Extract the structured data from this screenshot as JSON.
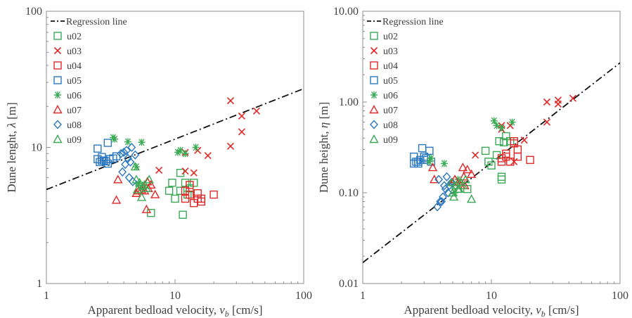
{
  "chart_data": [
    {
      "id": "left",
      "type": "scatter",
      "xscale": "log",
      "yscale": "log",
      "xlim": [
        1,
        100
      ],
      "ylim": [
        1,
        100
      ],
      "xticks": [
        "1",
        "10",
        "100"
      ],
      "yticks": [
        "1",
        "10",
        "100"
      ],
      "xlabel": "Apparent bedload velocity, ",
      "xlabel_symbol": "v",
      "xlabel_sub": "b",
      "xlabel_unit": " [cm/s]",
      "ylabel": "Dune lenght, ",
      "ylabel_symbol": "λ",
      "ylabel_unit": " [m]",
      "legend_position": "top-left",
      "grid": false,
      "regression": {
        "label": "Regression line",
        "x": [
          1,
          100
        ],
        "y": [
          4.9,
          27
        ]
      },
      "series": [
        {
          "name": "u02",
          "marker": "square",
          "color": "#3aaa55",
          "x": [
            6.5,
            9.5,
            10.0,
            9.0,
            11.0,
            11.5,
            12.0,
            13.0,
            14.0,
            12.5,
            11.0
          ],
          "y": [
            3.3,
            5.5,
            4.2,
            4.8,
            4.8,
            3.2,
            5.5,
            5.0,
            5.5,
            4.5,
            6.5
          ]
        },
        {
          "name": "u03",
          "marker": "x",
          "color": "#e02828",
          "x": [
            27,
            33,
            33,
            43,
            27,
            18,
            15,
            12,
            14,
            7.5,
            12
          ],
          "y": [
            22,
            17,
            13,
            18.5,
            10.2,
            8.7,
            9.5,
            9.2,
            6.5,
            6.8,
            6.7
          ]
        },
        {
          "name": "u04",
          "marker": "square",
          "color": "#e02828",
          "x": [
            12,
            13,
            14,
            15,
            15,
            16,
            12,
            20,
            16,
            13
          ],
          "y": [
            4.2,
            4.5,
            3.9,
            4.2,
            4.6,
            4.2,
            4.8,
            4.5,
            4.0,
            5.3
          ]
        },
        {
          "name": "u05",
          "marker": "square",
          "color": "#2a78c0",
          "x": [
            2.5,
            2.7,
            2.8,
            2.6,
            3.0,
            3.1,
            3.3,
            3.0,
            2.7,
            2.5,
            3.5,
            2.9
          ],
          "y": [
            9.8,
            8.5,
            8.0,
            7.8,
            7.6,
            8.2,
            8.3,
            10.8,
            8.0,
            8.2,
            8.6,
            7.9
          ]
        },
        {
          "name": "u06",
          "marker": "asterisk",
          "color": "#3aaa55",
          "x": [
            3.3,
            3.4,
            4.3,
            5.5,
            10.5,
            11.0,
            12.0,
            14.5,
            5.0,
            5.2,
            5.6
          ],
          "y": [
            11.8,
            11.5,
            11.0,
            10.9,
            9.2,
            9.5,
            9.0,
            10.0,
            7.2,
            5.4,
            5.0
          ]
        },
        {
          "name": "u07",
          "marker": "triangle",
          "color": "#e02828",
          "x": [
            3.5,
            3.6,
            5.0,
            6.0,
            6.2,
            5.5,
            7.0,
            6.5,
            5.8,
            6.1,
            5.2
          ],
          "y": [
            4.1,
            5.8,
            4.6,
            3.5,
            5.0,
            4.9,
            4.5,
            5.3,
            4.8,
            5.6,
            4.8
          ]
        },
        {
          "name": "u08",
          "marker": "diamond",
          "color": "#2a78c0",
          "x": [
            3.8,
            4.0,
            4.2,
            4.3,
            4.5,
            4.4,
            4.7,
            4.9,
            3.9,
            4.6,
            4.1
          ],
          "y": [
            9.0,
            9.2,
            9.5,
            8.3,
            7.8,
            6.0,
            5.6,
            8.8,
            6.6,
            10.0,
            7.5
          ]
        },
        {
          "name": "u09",
          "marker": "triangle",
          "color": "#3aaa55",
          "x": [
            5.0,
            5.3,
            5.5,
            5.8,
            6.0,
            5.1,
            4.9,
            6.3,
            5.6
          ],
          "y": [
            5.8,
            5.5,
            4.3,
            5.3,
            5.0,
            4.9,
            7.2,
            5.8,
            5.2
          ]
        }
      ]
    },
    {
      "id": "right",
      "type": "scatter",
      "xscale": "log",
      "yscale": "log",
      "xlim": [
        1,
        100
      ],
      "ylim": [
        0.01,
        10
      ],
      "xticks": [
        "1",
        "10",
        "100"
      ],
      "yticks": [
        "0.01",
        "0.10",
        "1.00",
        "10.00"
      ],
      "xlabel": "Apparent bedload velocity, ",
      "xlabel_symbol": "v",
      "xlabel_sub": "b",
      "xlabel_unit": " [cm/s]",
      "ylabel": "Dune height, ",
      "ylabel_symbol": "η",
      "ylabel_unit": " [m]",
      "legend_position": "top-left",
      "grid": false,
      "regression": {
        "label": "Regression line",
        "x": [
          1,
          100
        ],
        "y": [
          0.017,
          2.7
        ]
      },
      "series": [
        {
          "name": "u02",
          "marker": "square",
          "color": "#3aaa55",
          "x": [
            6.5,
            9.5,
            10.0,
            9.0,
            11.0,
            11.5,
            12.0,
            13.0,
            14.0,
            12.5,
            12.0
          ],
          "y": [
            0.11,
            0.22,
            0.2,
            0.29,
            0.26,
            0.37,
            0.15,
            0.42,
            0.37,
            0.36,
            0.14
          ]
        },
        {
          "name": "u03",
          "marker": "x",
          "color": "#e02828",
          "x": [
            27,
            33,
            33,
            43,
            27,
            18,
            15,
            14,
            12,
            7.5,
            12
          ],
          "y": [
            1.0,
            1.05,
            0.95,
            1.1,
            0.6,
            0.38,
            0.22,
            0.55,
            0.5,
            0.26,
            0.55
          ]
        },
        {
          "name": "u04",
          "marker": "square",
          "color": "#e02828",
          "x": [
            12,
            13,
            14,
            15,
            15,
            16,
            12,
            20,
            16,
            13
          ],
          "y": [
            0.22,
            0.25,
            0.22,
            0.37,
            0.35,
            0.3,
            0.24,
            0.23,
            0.25,
            0.27
          ]
        },
        {
          "name": "u05",
          "marker": "square",
          "color": "#2a78c0",
          "x": [
            2.5,
            2.7,
            2.8,
            2.6,
            3.0,
            3.1,
            3.3,
            2.9,
            2.7,
            2.5,
            3.4,
            3.0
          ],
          "y": [
            0.25,
            0.21,
            0.23,
            0.22,
            0.23,
            0.24,
            0.29,
            0.31,
            0.22,
            0.21,
            0.22,
            0.25
          ]
        },
        {
          "name": "u06",
          "marker": "asterisk",
          "color": "#3aaa55",
          "x": [
            3.3,
            3.4,
            4.3,
            5.5,
            10.5,
            11.0,
            12.0,
            14.5,
            5.0,
            5.2,
            5.6
          ],
          "y": [
            0.22,
            0.24,
            0.21,
            0.14,
            0.62,
            0.55,
            0.52,
            0.6,
            0.12,
            0.1,
            0.13
          ]
        },
        {
          "name": "u07",
          "marker": "triangle",
          "color": "#e02828",
          "x": [
            3.5,
            3.6,
            5.0,
            6.0,
            6.2,
            5.5,
            7.0,
            6.5,
            5.8,
            6.1,
            5.2
          ],
          "y": [
            0.19,
            0.14,
            0.13,
            0.19,
            0.12,
            0.11,
            0.16,
            0.18,
            0.12,
            0.15,
            0.14
          ]
        },
        {
          "name": "u08",
          "marker": "diamond",
          "color": "#2a78c0",
          "x": [
            3.8,
            4.0,
            4.2,
            4.3,
            4.5,
            4.4,
            4.7,
            4.9,
            3.9,
            4.6,
            4.1
          ],
          "y": [
            0.07,
            0.08,
            0.09,
            0.12,
            0.15,
            0.11,
            0.12,
            0.13,
            0.14,
            0.1,
            0.08
          ]
        },
        {
          "name": "u09",
          "marker": "triangle",
          "color": "#3aaa55",
          "x": [
            5.0,
            5.3,
            5.5,
            5.8,
            6.0,
            5.1,
            4.9,
            6.3,
            5.6,
            7.0
          ],
          "y": [
            0.1,
            0.12,
            0.11,
            0.13,
            0.12,
            0.09,
            0.13,
            0.14,
            0.11,
            0.085
          ]
        }
      ]
    }
  ]
}
